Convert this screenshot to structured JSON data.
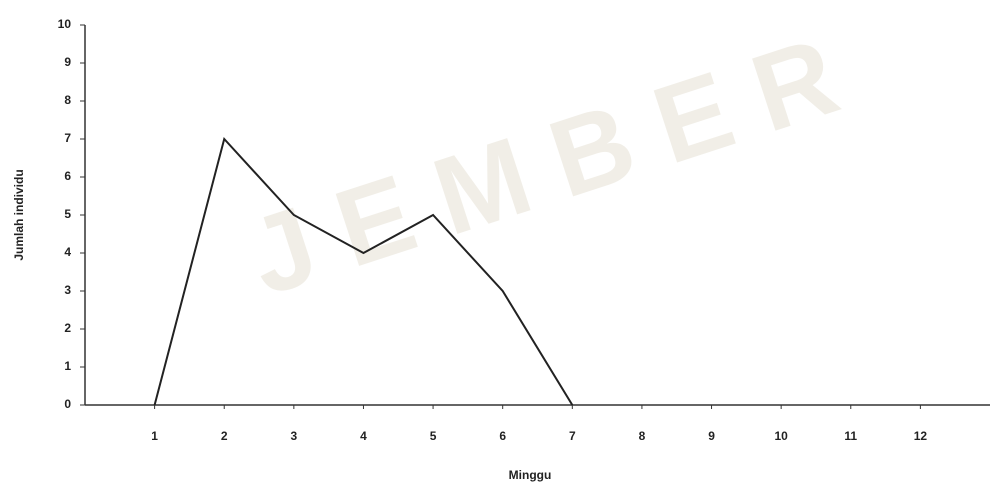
{
  "chart_data": {
    "type": "line",
    "watermark": "JEMBER",
    "xlabel": "Minggu",
    "ylabel": "Jumlah individu",
    "x": [
      1,
      2,
      3,
      4,
      5,
      6,
      7
    ],
    "values": [
      0,
      7,
      5,
      4,
      5,
      3,
      0
    ],
    "color": "#222222",
    "xlim": [
      0,
      13
    ],
    "xticks": [
      1,
      2,
      3,
      4,
      5,
      6,
      7,
      8,
      9,
      10,
      11,
      12
    ],
    "ylim": [
      0,
      10
    ],
    "yticks": [
      0,
      1,
      2,
      3,
      4,
      5,
      6,
      7,
      8,
      9,
      10
    ],
    "grid": false
  }
}
